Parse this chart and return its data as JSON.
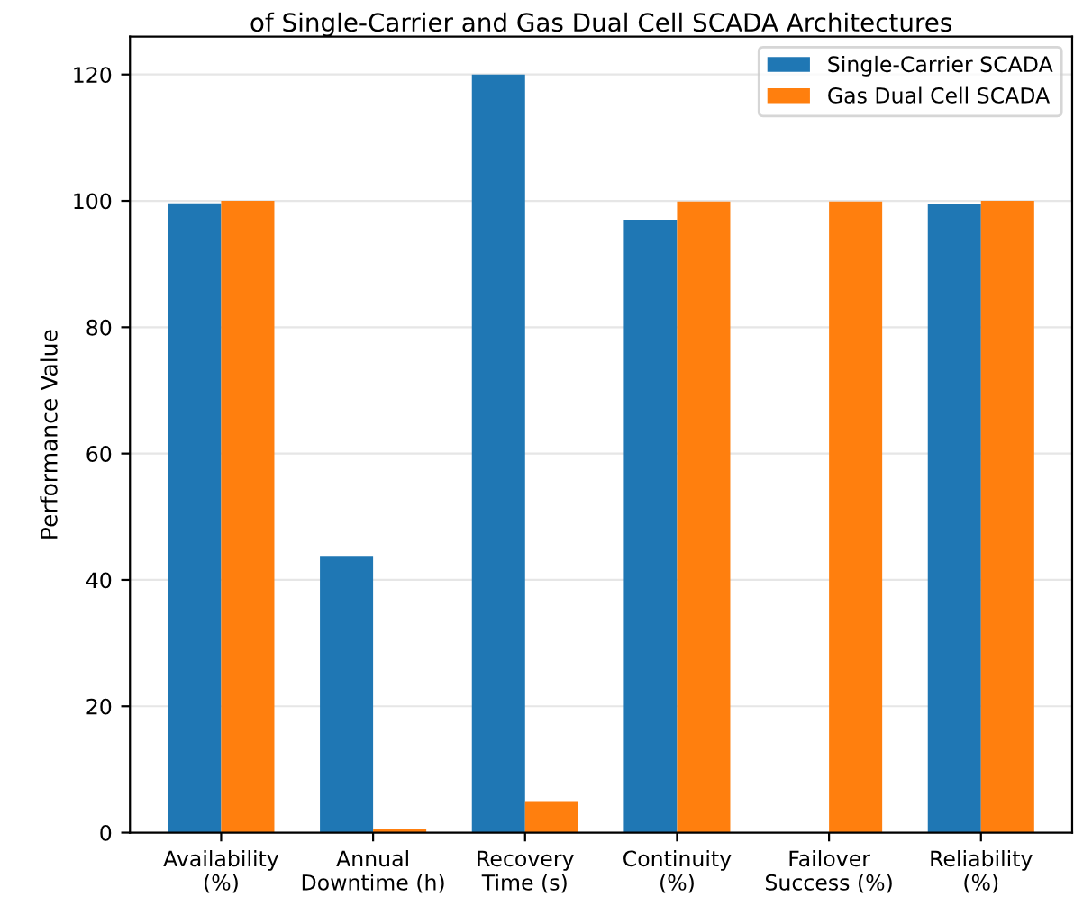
{
  "chart_data": {
    "type": "bar",
    "title": "of Single-Carrier and Gas Dual Cell SCADA Architectures",
    "ylabel": "Performance Value",
    "categories": [
      "Availability\n(%)",
      "Annual\nDowntime (h)",
      "Recovery\nTime (s)",
      "Continuity\n(%)",
      "Failover\nSuccess (%)",
      "Reliability\n(%)"
    ],
    "series": [
      {
        "name": "Single-Carrier SCADA",
        "color": "#1f77b4",
        "values": [
          99.6,
          43.8,
          120,
          97.0,
          0,
          99.5
        ]
      },
      {
        "name": "Gas Dual Cell SCADA",
        "color": "#ff7f0e",
        "values": [
          100,
          0.5,
          5,
          99.9,
          99.9,
          100
        ]
      }
    ],
    "ylim": [
      0,
      126
    ],
    "yticks": [
      0,
      20,
      40,
      60,
      80,
      100,
      120
    ],
    "grid": "y",
    "legend": "top right"
  }
}
